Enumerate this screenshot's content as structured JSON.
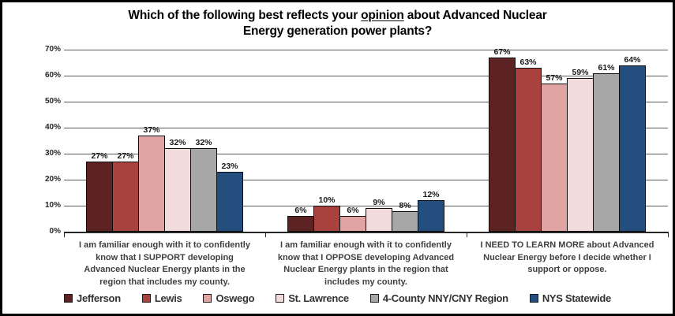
{
  "title": {
    "line1_pre": "Which of the following best reflects your ",
    "line1_underlined": "opinion",
    "line1_post": " about Advanced Nuclear",
    "line2": "Energy generation power plants?"
  },
  "chart_data": {
    "type": "bar",
    "title": "Which of the following best reflects your opinion about Advanced Nuclear Energy generation power plants?",
    "categories": [
      "I am familiar enough with it to confidently know that I SUPPORT developing Advanced Nuclear Energy plants in the region that includes my county.",
      "I am familiar enough with it to confidently know that I OPPOSE developing Advanced Nuclear Energy plants in the region that includes my county.",
      "I NEED TO LEARN MORE about Advanced Nuclear Energy before I decide whether I support or oppose."
    ],
    "series": [
      {
        "name": "Jefferson",
        "color": "#5c2322",
        "values": [
          27,
          6,
          67
        ]
      },
      {
        "name": "Lewis",
        "color": "#a8423e",
        "values": [
          27,
          10,
          63
        ]
      },
      {
        "name": "Oswego",
        "color": "#e0a5a2",
        "values": [
          37,
          6,
          57
        ]
      },
      {
        "name": "St. Lawrence",
        "color": "#f2dcdb",
        "values": [
          32,
          9,
          59
        ]
      },
      {
        "name": "4-County NNY/CNY Region",
        "color": "#a7a7a7",
        "values": [
          32,
          8,
          61
        ]
      },
      {
        "name": "NYS Statewide",
        "color": "#234e7d",
        "values": [
          23,
          12,
          64
        ]
      }
    ],
    "value_labels": [
      [
        "27%",
        "6%",
        "67%"
      ],
      [
        "27%",
        "10%",
        "63%"
      ],
      [
        "37%",
        "6%",
        "57%"
      ],
      [
        "32%",
        "9%",
        "59%"
      ],
      [
        "32%",
        "8%",
        "61%"
      ],
      [
        "23%",
        "12%",
        "64%"
      ]
    ],
    "ylim": [
      0,
      70
    ],
    "yticks": [
      {
        "value": 0,
        "label": "0%"
      },
      {
        "value": 10,
        "label": "10%"
      },
      {
        "value": 20,
        "label": "20%"
      },
      {
        "value": 30,
        "label": "30%"
      },
      {
        "value": 40,
        "label": "40%"
      },
      {
        "value": 50,
        "label": "50%"
      },
      {
        "value": 60,
        "label": "60%"
      },
      {
        "value": 70,
        "label": "70%"
      }
    ],
    "grid": true,
    "legend_position": "bottom",
    "value_suffix": "%"
  }
}
